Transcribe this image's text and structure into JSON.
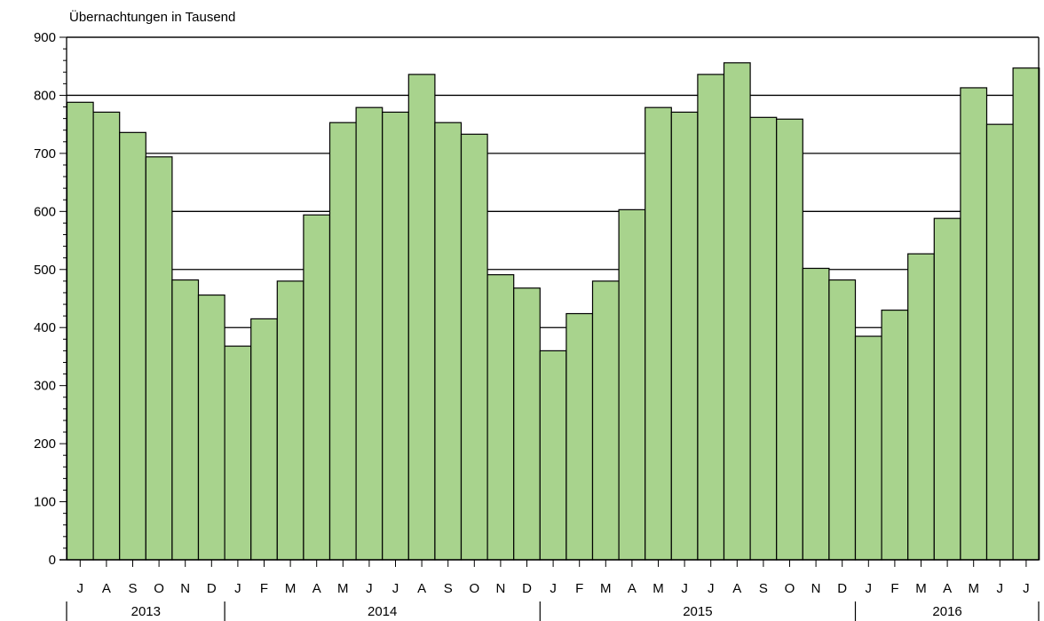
{
  "chart_data": {
    "type": "bar",
    "ylabel": "Übernachtungen in Tausend",
    "ylim": [
      0,
      900
    ],
    "yticks": [
      0,
      100,
      200,
      300,
      400,
      500,
      600,
      700,
      800,
      900
    ],
    "grid": "horizontal",
    "bar_color": "#a8d38d",
    "bar_edge_color": "#000000",
    "categories": [
      "J",
      "A",
      "S",
      "O",
      "N",
      "D",
      "J",
      "F",
      "M",
      "A",
      "M",
      "J",
      "J",
      "A",
      "S",
      "O",
      "N",
      "D",
      "J",
      "F",
      "M",
      "A",
      "M",
      "J",
      "J",
      "A",
      "S",
      "O",
      "N",
      "D",
      "J",
      "F",
      "M",
      "A",
      "M",
      "J",
      "J"
    ],
    "values": [
      788,
      771,
      736,
      694,
      482,
      456,
      368,
      415,
      480,
      594,
      753,
      779,
      771,
      836,
      753,
      733,
      491,
      468,
      360,
      424,
      480,
      603,
      779,
      771,
      836,
      856,
      762,
      759,
      502,
      482,
      385,
      430,
      527,
      588,
      813,
      750,
      847
    ],
    "years": [
      {
        "label": "2013",
        "months": 6
      },
      {
        "label": "2014",
        "months": 12
      },
      {
        "label": "2015",
        "months": 12
      },
      {
        "label": "2016",
        "months": 7
      }
    ]
  }
}
